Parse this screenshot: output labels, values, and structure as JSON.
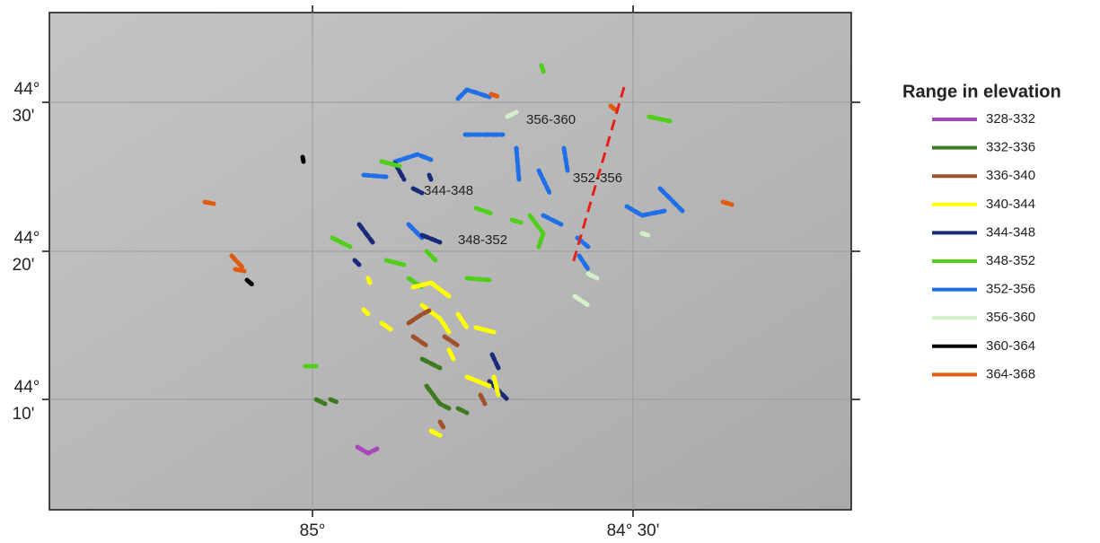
{
  "map": {
    "x_labels": [
      "85°",
      "84° 30'"
    ],
    "y_labels": [
      {
        "deg": "44°",
        "min": "30'"
      },
      {
        "deg": "44°",
        "min": "20'"
      },
      {
        "deg": "44°",
        "min": "10'"
      }
    ],
    "annotations": [
      "356-360",
      "352-356",
      "344-348",
      "348-352"
    ]
  },
  "legend": {
    "title": "Range in elevation",
    "items": [
      {
        "label": "328-332",
        "color": "#a845b8"
      },
      {
        "label": "332-336",
        "color": "#3e7a1f"
      },
      {
        "label": "336-340",
        "color": "#a0522d"
      },
      {
        "label": "340-344",
        "color": "#ffff00"
      },
      {
        "label": "344-348",
        "color": "#1a2a7a"
      },
      {
        "label": "348-352",
        "color": "#4fcf1a"
      },
      {
        "label": "352-356",
        "color": "#1e6fe8"
      },
      {
        "label": "356-360",
        "color": "#d4f0c8"
      },
      {
        "label": "360-364",
        "color": "#000000"
      },
      {
        "label": "364-368",
        "color": "#e05a10"
      }
    ]
  }
}
